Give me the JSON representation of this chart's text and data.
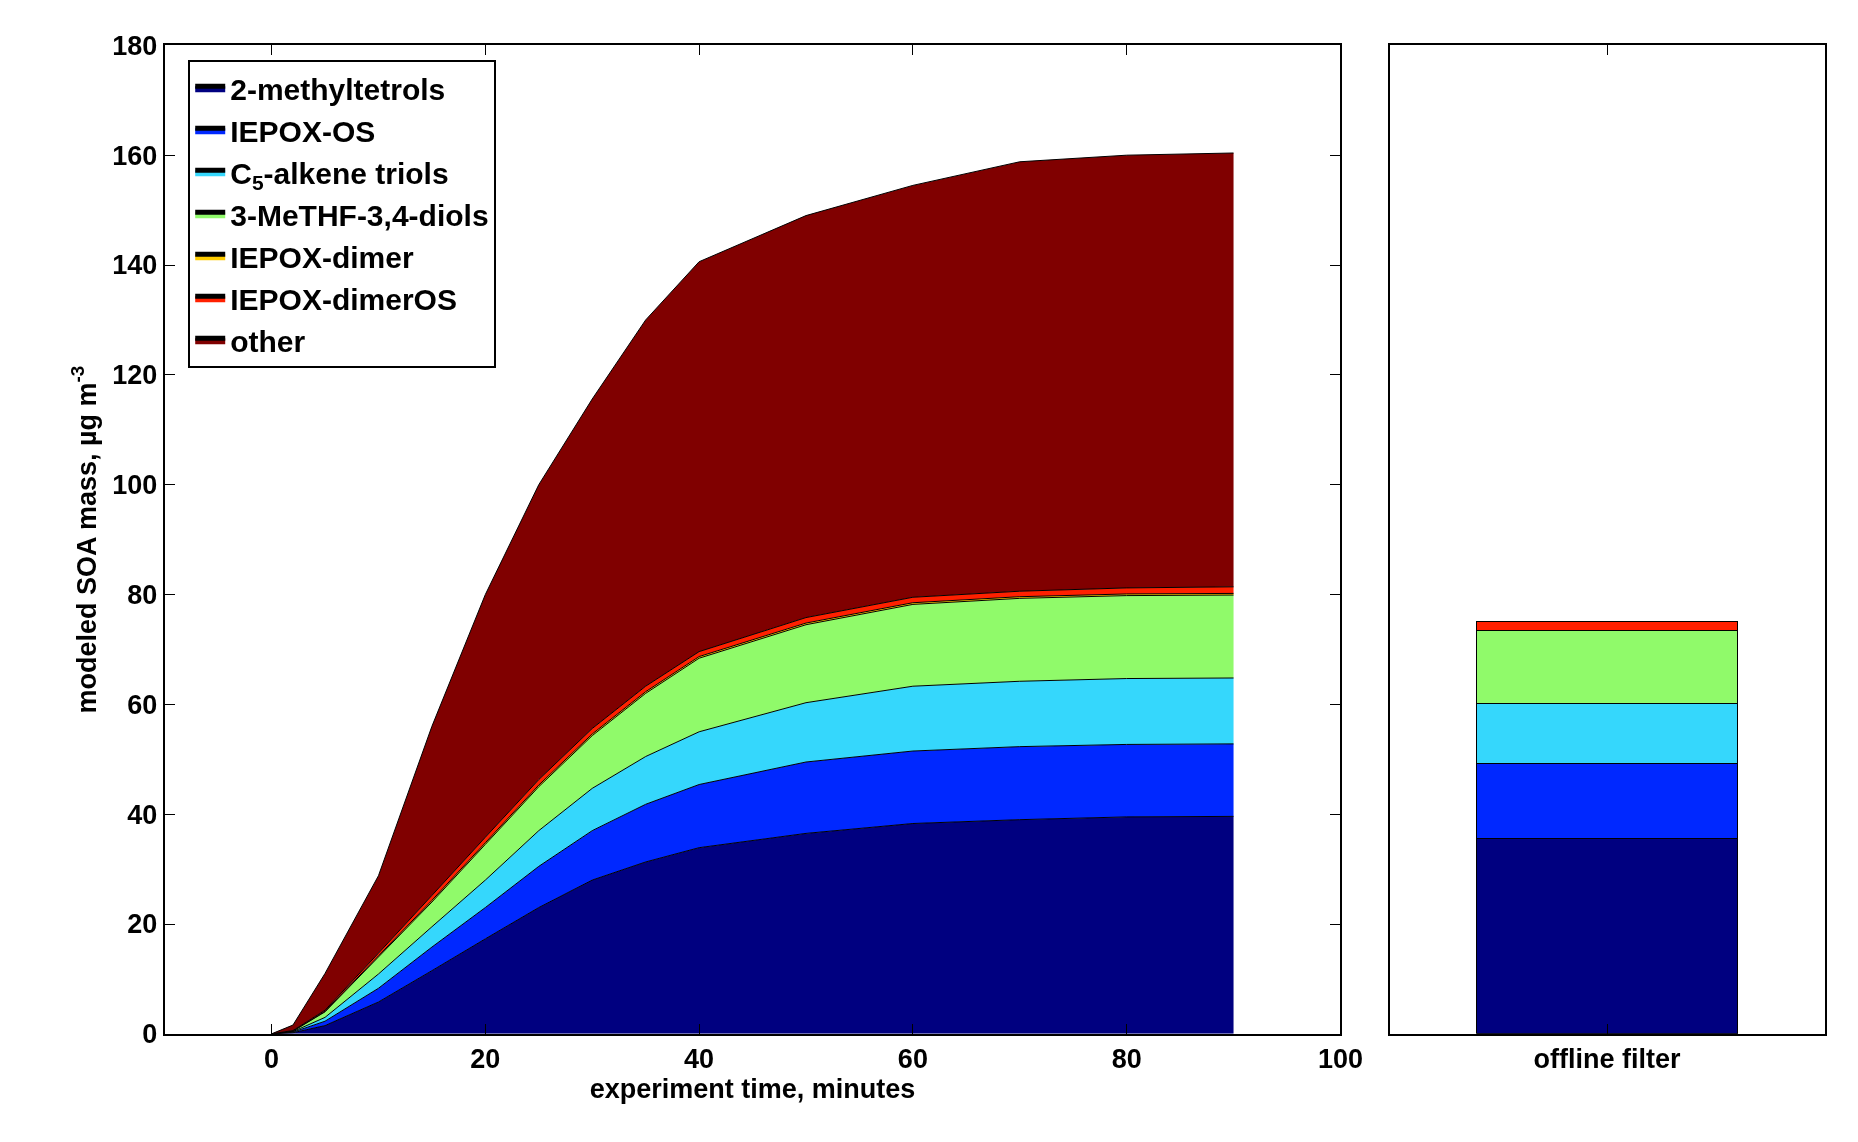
{
  "chart_data": [
    {
      "type": "area",
      "stacked": true,
      "xlabel": "experiment time, minutes",
      "ylabel": "modeled SOA mass, µg m$^{-3}$",
      "x": [
        0,
        2,
        5,
        10,
        15,
        20,
        25,
        30,
        35,
        40,
        50,
        60,
        70,
        80,
        90
      ],
      "xlim": [
        -10,
        100
      ],
      "xticks": [
        0,
        20,
        40,
        60,
        80,
        100
      ],
      "ylim": [
        0,
        180
      ],
      "yticks": [
        0,
        20,
        40,
        60,
        80,
        100,
        120,
        140,
        160,
        180
      ],
      "legend": "top left",
      "series": [
        {
          "name": "2-methyltetrols",
          "color": "#000080",
          "values": [
            0,
            0.2,
            1.5,
            5.8,
            11.5,
            17.3,
            23,
            28,
            31.3,
            33.9,
            36.5,
            38.3,
            39,
            39.5,
            39.6
          ]
        },
        {
          "name": "IEPOX-OS",
          "color": "#0028ff",
          "values": [
            0,
            0.1,
            0.8,
            2.5,
            4.3,
            5.7,
            7.5,
            9,
            10.5,
            11.5,
            13,
            13.2,
            13.3,
            13.2,
            13.2
          ]
        },
        {
          "name": "C$_{5}$-alkene triols",
          "color": "#35d7fc",
          "values": [
            0,
            0.1,
            0.7,
            2.6,
            3.7,
            5,
            6.5,
            7.7,
            8.7,
            9.6,
            10.8,
            11.8,
            11.9,
            12,
            12
          ]
        },
        {
          "name": "3-MeTHF-3,4-diols",
          "color": "#90fa6a",
          "values": [
            0,
            0.1,
            1,
            3.1,
            4.5,
            6.5,
            8,
            9.6,
            11.5,
            13.4,
            14.2,
            14.9,
            15.1,
            15.1,
            15.1
          ]
        },
        {
          "name": "IEPOX-dimer",
          "color": "#ffcc00",
          "values": [
            0,
            0,
            0.1,
            0.2,
            0.3,
            0.3,
            0.3,
            0.3,
            0.3,
            0.3,
            0.3,
            0.3,
            0.3,
            0.3,
            0.3
          ]
        },
        {
          "name": "IEPOX-dimerOS",
          "color": "#ff2000",
          "values": [
            0,
            0.1,
            0.2,
            0.5,
            0.9,
            1,
            1,
            1,
            1,
            0.9,
            1,
            1,
            1,
            1.1,
            1.2
          ]
        },
        {
          "name": "other",
          "color": "#800000",
          "values": [
            0,
            1,
            6.7,
            14.1,
            30.8,
            44.2,
            53.7,
            60,
            66.7,
            71,
            73.2,
            75,
            78.2,
            78.8,
            79
          ]
        }
      ]
    },
    {
      "type": "bar",
      "stacked": true,
      "categories": [
        "offline filter"
      ],
      "ylim": [
        0,
        180
      ],
      "tick_labels": "x",
      "legend": false,
      "series": [
        {
          "color": "#000080",
          "values": [
            35.5
          ]
        },
        {
          "color": "#0028ff",
          "values": [
            13.8
          ]
        },
        {
          "color": "#35d7fc",
          "values": [
            10.9
          ]
        },
        {
          "color": "#90fa6a",
          "values": [
            13.2
          ]
        },
        {
          "color": "#ffcc00",
          "values": [
            null
          ]
        },
        {
          "color": "#ff2000",
          "values": [
            1.6
          ]
        }
      ]
    }
  ]
}
